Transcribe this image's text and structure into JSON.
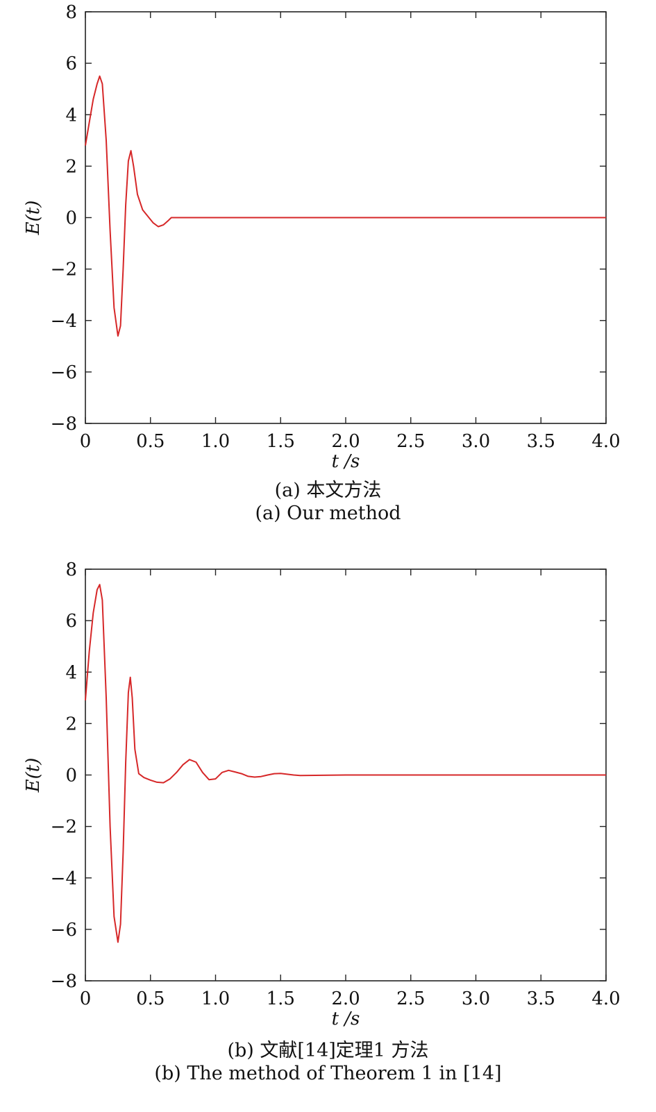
{
  "chart_data": [
    {
      "type": "line",
      "caption_cn": "(a) 本文方法",
      "caption_en": "(a) Our method",
      "xlabel": "t /s",
      "ylabel": "E(t)",
      "xlim": [
        0,
        4.0
      ],
      "ylim": [
        -8,
        8
      ],
      "xticks": [
        0,
        0.5,
        1.0,
        1.5,
        2.0,
        2.5,
        3.0,
        3.5,
        4.0
      ],
      "xtick_labels": [
        "0",
        "0.5",
        "1.0",
        "1.5",
        "2.0",
        "2.5",
        "3.0",
        "3.5",
        "4.0"
      ],
      "yticks": [
        8,
        6,
        4,
        2,
        0,
        -2,
        -4,
        -6,
        -8
      ],
      "ytick_labels": [
        "8",
        "6",
        "4",
        "2",
        "0",
        "−2",
        "−4",
        "−6",
        "−8"
      ],
      "grid": false,
      "color": "#d62728",
      "series": [
        {
          "x": [
            0,
            0.03,
            0.06,
            0.09,
            0.11,
            0.13,
            0.16,
            0.19,
            0.22,
            0.25,
            0.27,
            0.29,
            0.31,
            0.33,
            0.35,
            0.37,
            0.4,
            0.44,
            0.48,
            0.52,
            0.56,
            0.6,
            0.64,
            0.66,
            0.7,
            1.0,
            2.0,
            3.0,
            4.0
          ],
          "y": [
            2.8,
            3.7,
            4.6,
            5.2,
            5.5,
            5.2,
            3.0,
            -0.5,
            -3.5,
            -4.6,
            -4.2,
            -2.0,
            0.5,
            2.2,
            2.6,
            2.0,
            0.9,
            0.3,
            0.05,
            -0.2,
            -0.35,
            -0.28,
            -0.1,
            0.0,
            0.0,
            0.0,
            0.0,
            0.0,
            0.0
          ]
        }
      ]
    },
    {
      "type": "line",
      "caption_cn": "(b) 文献[14]定理1 方法",
      "caption_en": "(b) The method of Theorem 1 in [14]",
      "xlabel": "t /s",
      "ylabel": "E(t)",
      "xlim": [
        0,
        4.0
      ],
      "ylim": [
        -8,
        8
      ],
      "xticks": [
        0,
        0.5,
        1.0,
        1.5,
        2.0,
        2.5,
        3.0,
        3.5,
        4.0
      ],
      "xtick_labels": [
        "0",
        "0.5",
        "1.0",
        "1.5",
        "2.0",
        "2.5",
        "3.0",
        "3.5",
        "4.0"
      ],
      "yticks": [
        8,
        6,
        4,
        2,
        0,
        -2,
        -4,
        -6,
        -8
      ],
      "ytick_labels": [
        "8",
        "6",
        "4",
        "2",
        "0",
        "−2",
        "−4",
        "−6",
        "−8"
      ],
      "grid": false,
      "color": "#d62728",
      "series": [
        {
          "x": [
            0,
            0.03,
            0.06,
            0.09,
            0.11,
            0.13,
            0.16,
            0.19,
            0.22,
            0.25,
            0.27,
            0.29,
            0.31,
            0.33,
            0.345,
            0.36,
            0.38,
            0.41,
            0.45,
            0.5,
            0.55,
            0.6,
            0.65,
            0.7,
            0.75,
            0.8,
            0.85,
            0.9,
            0.95,
            1.0,
            1.05,
            1.1,
            1.15,
            1.2,
            1.25,
            1.3,
            1.35,
            1.4,
            1.45,
            1.5,
            1.55,
            1.6,
            1.65,
            2.0,
            3.0,
            4.0
          ],
          "y": [
            2.9,
            4.8,
            6.3,
            7.2,
            7.4,
            6.8,
            3.0,
            -2.0,
            -5.5,
            -6.5,
            -5.8,
            -3.0,
            0.5,
            3.2,
            3.8,
            3.0,
            1.0,
            0.05,
            -0.1,
            -0.2,
            -0.28,
            -0.3,
            -0.15,
            0.1,
            0.4,
            0.6,
            0.5,
            0.1,
            -0.18,
            -0.15,
            0.1,
            0.18,
            0.12,
            0.05,
            -0.05,
            -0.08,
            -0.06,
            0.0,
            0.05,
            0.06,
            0.03,
            0.0,
            -0.02,
            0.0,
            0.0,
            0.0
          ]
        }
      ]
    }
  ]
}
